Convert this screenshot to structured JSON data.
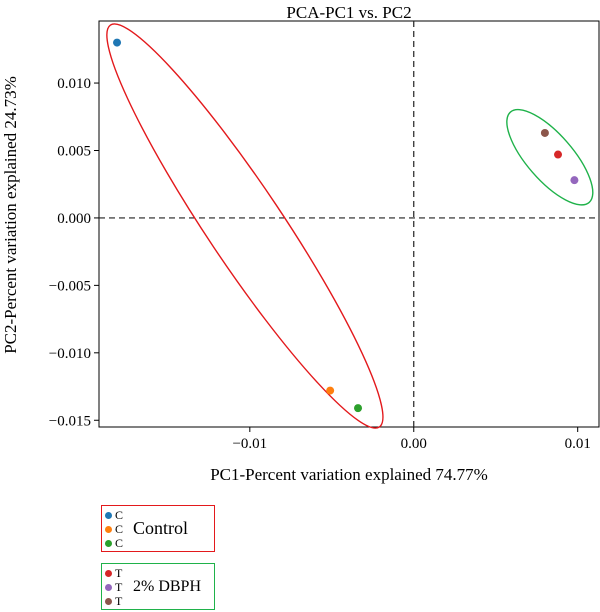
{
  "chart_data": {
    "type": "scatter",
    "title": "PCA-PC1 vs. PC2",
    "xlabel": "PC1-Percent variation explained 74.77%",
    "ylabel": "PC2-Percent variation explained 24.73%",
    "xlim": [
      -0.0192,
      0.0113
    ],
    "ylim": [
      -0.0155,
      0.0146
    ],
    "xticks": [
      -0.01,
      0.0,
      0.01
    ],
    "xtick_labels": [
      "−0.01",
      "0.00",
      "0.01"
    ],
    "yticks": [
      -0.015,
      -0.01,
      -0.005,
      0.0,
      0.005,
      0.01
    ],
    "ytick_labels": [
      "−0.015",
      "−0.010",
      "−0.005",
      "0.000",
      "0.005",
      "0.010"
    ],
    "reference_lines": {
      "x": 0.0,
      "y": 0.0,
      "style": "dashed"
    },
    "grid": false,
    "points": [
      {
        "group": "Control",
        "label": "C",
        "x": -0.0181,
        "y": 0.013,
        "color": "#1f77b4"
      },
      {
        "group": "Control",
        "label": "C",
        "x": -0.0051,
        "y": -0.0128,
        "color": "#ff7f0e"
      },
      {
        "group": "Control",
        "label": "C",
        "x": -0.0034,
        "y": -0.0141,
        "color": "#2ca02c"
      },
      {
        "group": "2% DBPH",
        "label": "T",
        "x": 0.0088,
        "y": 0.0047,
        "color": "#d62728"
      },
      {
        "group": "2% DBPH",
        "label": "T",
        "x": 0.0098,
        "y": 0.0028,
        "color": "#9467bd"
      },
      {
        "group": "2% DBPH",
        "label": "T",
        "x": 0.008,
        "y": 0.0063,
        "color": "#8c564b"
      }
    ],
    "ellipses": [
      {
        "group": "Control",
        "color": "#e3191c",
        "center": [
          -0.0103,
          -0.0006
        ],
        "endpoints": [
          [
            -0.0192,
            0.0147
          ],
          [
            -0.0028,
            -0.0151
          ]
        ],
        "half_width": 0.0023
      },
      {
        "group": "2% DBPH",
        "color": "#1fb24a",
        "center": [
          0.0083,
          0.0045
        ],
        "endpoints": [
          [
            0.0062,
            0.0079
          ],
          [
            0.011,
            0.0012
          ]
        ],
        "half_width": 0.0014
      }
    ],
    "legend": {
      "placement": "bottom-left",
      "groups": [
        {
          "name": "Control",
          "color": "#e3191c",
          "items": [
            {
              "label": "C",
              "color": "#1f77b4"
            },
            {
              "label": "C",
              "color": "#ff7f0e"
            },
            {
              "label": "C",
              "color": "#2ca02c"
            }
          ]
        },
        {
          "name": "2% DBPH",
          "color": "#1fb24a",
          "items": [
            {
              "label": "T",
              "color": "#d62728"
            },
            {
              "label": "T",
              "color": "#9467bd"
            },
            {
              "label": "T",
              "color": "#8c564b"
            }
          ]
        }
      ]
    }
  }
}
